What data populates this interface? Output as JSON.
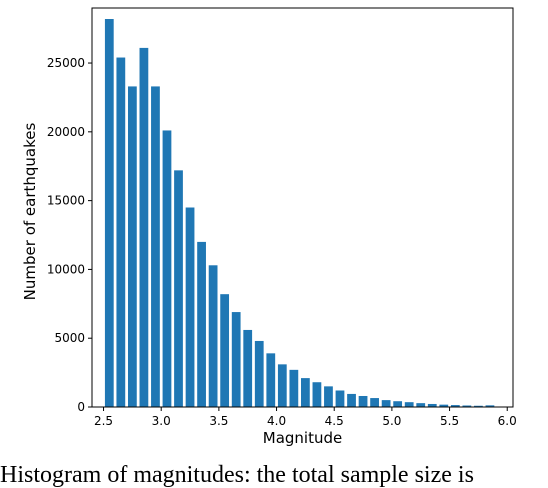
{
  "chart_data": {
    "type": "bar",
    "xlabel": "Magnitude",
    "ylabel": "Number of earthquakes",
    "xlim": [
      2.4,
      6.05
    ],
    "ylim": [
      0,
      29000
    ],
    "x_ticks": [
      "2.5",
      "3.0",
      "3.5",
      "4.0",
      "4.5",
      "5.0",
      "5.5",
      "6.0"
    ],
    "y_ticks": [
      "0",
      "5000",
      "10000",
      "15000",
      "20000",
      "25000"
    ],
    "bin_width": 0.1,
    "bar_color": "#1f77b4",
    "x": [
      2.5,
      2.6,
      2.7,
      2.8,
      2.9,
      3.0,
      3.1,
      3.2,
      3.3,
      3.4,
      3.5,
      3.6,
      3.7,
      3.8,
      3.9,
      4.0,
      4.1,
      4.2,
      4.3,
      4.4,
      4.5,
      4.6,
      4.7,
      4.8,
      4.9,
      5.0,
      5.1,
      5.2,
      5.3,
      5.4,
      5.5,
      5.6,
      5.7,
      5.8
    ],
    "values": [
      28200,
      25400,
      23300,
      26100,
      23300,
      20100,
      17200,
      14500,
      12000,
      10300,
      8200,
      6900,
      5600,
      4800,
      3900,
      3100,
      2700,
      2100,
      1800,
      1500,
      1200,
      950,
      800,
      650,
      500,
      420,
      350,
      280,
      220,
      170,
      140,
      110,
      90,
      120
    ]
  },
  "caption": "Histogram of magnitudes: the total sample size is"
}
